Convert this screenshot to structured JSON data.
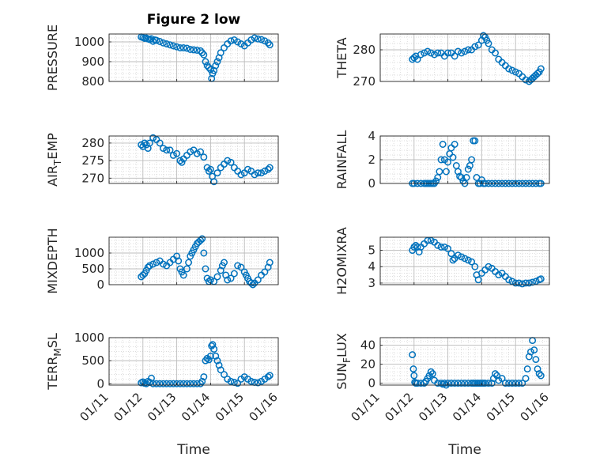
{
  "colors": {
    "marker": "#0072BD",
    "axis": "#262626",
    "grid": "#d0d0d0"
  },
  "chart_data": [
    {
      "type": "scatter",
      "title": "Figure 2 low",
      "ylabel_main": "PRESSURE",
      "ylabel_sub": "",
      "ylim": [
        800,
        1040
      ],
      "yticks": [
        800,
        900,
        1000
      ],
      "ytick_labels": [
        "800",
        "900",
        "1000"
      ],
      "x": [
        11.95,
        12.0,
        12.05,
        12.1,
        12.15,
        12.2,
        12.25,
        12.3,
        12.35,
        12.4,
        12.5,
        12.6,
        12.7,
        12.8,
        12.9,
        13.0,
        13.1,
        13.2,
        13.3,
        13.4,
        13.5,
        13.6,
        13.7,
        13.75,
        13.8,
        13.85,
        13.9,
        13.95,
        14.0,
        14.03,
        14.06,
        14.1,
        14.15,
        14.2,
        14.25,
        14.3,
        14.4,
        14.5,
        14.6,
        14.7,
        14.8,
        14.9,
        15.0,
        15.1,
        15.2,
        15.3,
        15.4,
        15.5,
        15.6,
        15.7,
        15.75
      ],
      "y": [
        1025,
        1022,
        1018,
        1020,
        1015,
        1012,
        1016,
        1003,
        1010,
        1008,
        1002,
        995,
        990,
        985,
        980,
        975,
        970,
        970,
        968,
        962,
        960,
        958,
        955,
        945,
        935,
        900,
        880,
        870,
        860,
        815,
        840,
        855,
        880,
        900,
        920,
        945,
        970,
        990,
        1005,
        1010,
        1000,
        990,
        980,
        995,
        1010,
        1020,
        1015,
        1012,
        1005,
        995,
        985
      ]
    },
    {
      "type": "scatter",
      "ylabel_main": "THETA",
      "ylabel_sub": "",
      "ylim": [
        270,
        285
      ],
      "yticks": [
        270,
        280
      ],
      "ytick_labels": [
        "270",
        "280"
      ],
      "x": [
        11.95,
        12.0,
        12.05,
        12.1,
        12.2,
        12.3,
        12.4,
        12.5,
        12.6,
        12.7,
        12.8,
        12.9,
        13.0,
        13.1,
        13.2,
        13.3,
        13.4,
        13.5,
        13.6,
        13.7,
        13.8,
        13.9,
        14.0,
        14.05,
        14.1,
        14.15,
        14.2,
        14.3,
        14.4,
        14.5,
        14.6,
        14.7,
        14.8,
        14.9,
        15.0,
        15.1,
        15.2,
        15.3,
        15.4,
        15.45,
        15.5,
        15.55,
        15.6,
        15.65,
        15.7,
        15.75
      ],
      "y": [
        277,
        277.5,
        278,
        277,
        278.5,
        279,
        279.5,
        279,
        278.5,
        279,
        279,
        278,
        279,
        279,
        278,
        279.5,
        279,
        279.5,
        280,
        280,
        281,
        281.5,
        283,
        284.5,
        284,
        283,
        282,
        280,
        279,
        277,
        276,
        275,
        274,
        273.5,
        273,
        272.5,
        271.5,
        270.5,
        270,
        270.5,
        271,
        271.5,
        272,
        272.5,
        273,
        274
      ]
    },
    {
      "type": "scatter",
      "ylabel_main": "AIR",
      "ylabel_sub": "T",
      "ylabel_rest": "EMP",
      "ylim": [
        268.5,
        282
      ],
      "yticks": [
        270,
        275,
        280
      ],
      "ytick_labels": [
        "270",
        "275",
        "280"
      ],
      "x": [
        11.95,
        12.0,
        12.05,
        12.1,
        12.15,
        12.2,
        12.3,
        12.4,
        12.5,
        12.6,
        12.7,
        12.8,
        12.9,
        13.0,
        13.1,
        13.15,
        13.2,
        13.3,
        13.4,
        13.5,
        13.6,
        13.7,
        13.8,
        13.9,
        13.95,
        14.0,
        14.05,
        14.1,
        14.2,
        14.3,
        14.4,
        14.5,
        14.6,
        14.7,
        14.8,
        14.9,
        15.0,
        15.1,
        15.2,
        15.3,
        15.4,
        15.5,
        15.6,
        15.7,
        15.75
      ],
      "y": [
        279.5,
        279,
        280,
        279.5,
        278.5,
        280,
        281.5,
        281,
        280,
        278.5,
        278,
        278,
        276.5,
        277,
        275,
        274.5,
        275.5,
        276.5,
        277.5,
        278,
        277,
        277.5,
        276,
        273,
        272,
        272.5,
        270.5,
        269,
        271.5,
        273,
        274,
        275,
        274.5,
        273,
        272,
        271,
        271.5,
        272.5,
        272,
        271,
        271.5,
        271.5,
        272,
        272.5,
        273
      ]
    },
    {
      "type": "scatter",
      "ylabel_main": "RAINFALL",
      "ylabel_sub": "",
      "ylim": [
        0,
        4
      ],
      "yticks": [
        0,
        2,
        4
      ],
      "ytick_labels": [
        "0",
        "2",
        "4"
      ],
      "x": [
        11.95,
        12.0,
        12.1,
        12.2,
        12.3,
        12.35,
        12.4,
        12.45,
        12.5,
        12.55,
        12.6,
        12.65,
        12.7,
        12.75,
        12.8,
        12.85,
        12.9,
        12.95,
        13.0,
        13.05,
        13.1,
        13.15,
        13.2,
        13.25,
        13.3,
        13.35,
        13.4,
        13.45,
        13.5,
        13.55,
        13.6,
        13.65,
        13.7,
        13.75,
        13.8,
        13.85,
        13.9,
        13.95,
        14.0,
        14.05,
        14.1,
        14.2,
        14.3,
        14.4,
        14.5,
        14.6,
        14.7,
        14.8,
        14.9,
        15.0,
        15.1,
        15.2,
        15.3,
        15.4,
        15.5,
        15.6,
        15.7,
        15.75
      ],
      "y": [
        0,
        0,
        0,
        0,
        0,
        0,
        0,
        0,
        0,
        0,
        0,
        0.2,
        0.5,
        1.0,
        2.0,
        3.3,
        2.0,
        1.0,
        1.8,
        2.5,
        3.0,
        2.2,
        3.3,
        1.5,
        1.0,
        0.6,
        0.5,
        0.2,
        0,
        0.5,
        1.2,
        1.5,
        2.0,
        3.6,
        3.6,
        0.5,
        0,
        0,
        0.3,
        0,
        0,
        0,
        0,
        0,
        0,
        0,
        0,
        0,
        0,
        0,
        0,
        0,
        0,
        0,
        0,
        0,
        0,
        0
      ]
    },
    {
      "type": "scatter",
      "ylabel_main": "MIXDEPTH",
      "ylabel_sub": "",
      "ylim": [
        0,
        1500
      ],
      "yticks": [
        0,
        500,
        1000
      ],
      "ytick_labels": [
        "0",
        "500",
        "1000"
      ],
      "x": [
        11.95,
        12.0,
        12.05,
        12.1,
        12.15,
        12.2,
        12.3,
        12.4,
        12.5,
        12.6,
        12.7,
        12.8,
        12.9,
        13.0,
        13.05,
        13.1,
        13.15,
        13.2,
        13.3,
        13.35,
        13.4,
        13.45,
        13.5,
        13.55,
        13.6,
        13.65,
        13.7,
        13.75,
        13.8,
        13.85,
        13.9,
        13.95,
        14.0,
        14.1,
        14.2,
        14.3,
        14.35,
        14.4,
        14.45,
        14.5,
        14.6,
        14.7,
        14.8,
        14.9,
        15.0,
        15.05,
        15.1,
        15.15,
        15.2,
        15.25,
        15.3,
        15.4,
        15.5,
        15.6,
        15.7,
        15.75
      ],
      "y": [
        250,
        300,
        350,
        450,
        550,
        600,
        650,
        700,
        750,
        650,
        600,
        700,
        800,
        900,
        750,
        500,
        400,
        300,
        500,
        700,
        900,
        1000,
        1100,
        1200,
        1300,
        1350,
        1400,
        1450,
        1000,
        500,
        200,
        100,
        150,
        100,
        250,
        450,
        600,
        700,
        300,
        150,
        200,
        350,
        600,
        550,
        400,
        300,
        200,
        100,
        50,
        0,
        50,
        150,
        300,
        400,
        550,
        700
      ]
    },
    {
      "type": "scatter",
      "ylabel_main": "H2OMIXRA",
      "ylabel_sub": "",
      "ylim": [
        2.9,
        5.8
      ],
      "yticks": [
        3,
        4,
        5
      ],
      "ytick_labels": [
        "3",
        "4",
        "5"
      ],
      "x": [
        11.95,
        12.0,
        12.05,
        12.1,
        12.15,
        12.2,
        12.3,
        12.4,
        12.5,
        12.6,
        12.7,
        12.8,
        12.9,
        13.0,
        13.1,
        13.15,
        13.2,
        13.3,
        13.4,
        13.5,
        13.6,
        13.7,
        13.8,
        13.85,
        13.9,
        14.0,
        14.1,
        14.2,
        14.3,
        14.4,
        14.5,
        14.6,
        14.7,
        14.8,
        14.9,
        15.0,
        15.1,
        15.2,
        15.3,
        15.4,
        15.5,
        15.6,
        15.7,
        15.75
      ],
      "y": [
        5.0,
        5.2,
        5.3,
        5.2,
        4.9,
        5.2,
        5.4,
        5.6,
        5.6,
        5.5,
        5.3,
        5.2,
        5.2,
        5.1,
        4.8,
        4.4,
        4.5,
        4.7,
        4.6,
        4.5,
        4.4,
        4.3,
        4.0,
        3.5,
        3.2,
        3.6,
        3.8,
        4.0,
        3.9,
        3.7,
        3.5,
        3.6,
        3.4,
        3.2,
        3.1,
        3.0,
        3.0,
        2.95,
        3.0,
        3.0,
        3.05,
        3.1,
        3.2,
        3.25
      ]
    },
    {
      "type": "scatter",
      "ylabel_main": "TERR",
      "ylabel_sub": "M",
      "ylabel_rest": "SL",
      "ylim": [
        -30,
        1000
      ],
      "yticks": [
        0,
        500,
        1000
      ],
      "ytick_labels": [
        "0",
        "500",
        "1000"
      ],
      "x": [
        11.95,
        12.0,
        12.05,
        12.1,
        12.15,
        12.2,
        12.25,
        12.3,
        12.4,
        12.5,
        12.6,
        12.7,
        12.8,
        12.9,
        13.0,
        13.1,
        13.2,
        13.3,
        13.4,
        13.5,
        13.6,
        13.7,
        13.75,
        13.8,
        13.85,
        13.9,
        13.95,
        14.0,
        14.03,
        14.06,
        14.1,
        14.15,
        14.2,
        14.25,
        14.3,
        14.4,
        14.5,
        14.6,
        14.7,
        14.8,
        14.9,
        15.0,
        15.1,
        15.2,
        15.3,
        15.4,
        15.5,
        15.6,
        15.7,
        15.75
      ],
      "y": [
        20,
        40,
        10,
        0,
        50,
        30,
        120,
        0,
        0,
        0,
        0,
        0,
        0,
        0,
        0,
        0,
        0,
        0,
        0,
        0,
        0,
        0,
        50,
        150,
        500,
        550,
        520,
        600,
        820,
        850,
        750,
        600,
        500,
        400,
        300,
        200,
        100,
        50,
        30,
        10,
        100,
        150,
        100,
        50,
        30,
        20,
        50,
        100,
        150,
        180
      ]
    },
    {
      "type": "scatter",
      "ylabel_main": "SUN",
      "ylabel_sub": "F",
      "ylabel_rest": "LUX",
      "ylim": [
        -2,
        48
      ],
      "yticks": [
        0,
        20,
        40
      ],
      "ytick_labels": [
        "0",
        "20",
        "40"
      ],
      "x": [
        11.95,
        11.98,
        12.0,
        12.02,
        12.05,
        12.1,
        12.2,
        12.3,
        12.35,
        12.4,
        12.45,
        12.5,
        12.55,
        12.6,
        12.7,
        12.8,
        12.85,
        12.9,
        12.95,
        13.0,
        13.1,
        13.2,
        13.3,
        13.4,
        13.5,
        13.6,
        13.7,
        13.75,
        13.8,
        13.85,
        13.9,
        13.95,
        14.0,
        14.05,
        14.1,
        14.2,
        14.3,
        14.35,
        14.4,
        14.45,
        14.5,
        14.6,
        14.7,
        14.8,
        14.9,
        15.0,
        15.1,
        15.2,
        15.3,
        15.35,
        15.4,
        15.45,
        15.5,
        15.55,
        15.6,
        15.65,
        15.7,
        15.75
      ],
      "y": [
        30,
        15,
        8,
        1,
        0,
        0,
        0,
        0,
        2,
        5,
        8,
        12,
        10,
        3,
        0,
        0,
        -1,
        0,
        -2,
        0,
        0,
        0,
        0,
        0,
        0,
        0,
        0,
        0,
        0,
        0,
        0,
        0,
        0,
        0,
        0,
        0,
        0,
        5,
        10,
        8,
        3,
        5,
        0,
        0,
        0,
        0,
        0,
        0,
        5,
        15,
        28,
        33,
        45,
        35,
        25,
        15,
        10,
        8
      ]
    }
  ],
  "x_axis": {
    "xlim": [
      11,
      16
    ],
    "ticks": [
      11,
      12,
      13,
      14,
      15,
      16
    ],
    "tick_labels": [
      "01/11",
      "01/12",
      "01/13",
      "01/14",
      "01/15",
      "01/16"
    ],
    "xlabel": "Time"
  }
}
